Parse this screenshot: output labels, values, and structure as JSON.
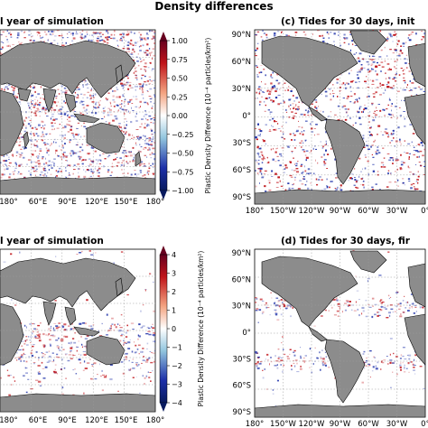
{
  "figure": {
    "title": "Density differences"
  },
  "panels": [
    {
      "title": "l year of simulation",
      "x_ticks": [
        "180°",
        "60°E",
        "90°E",
        "120°E",
        "150°E",
        "180°"
      ],
      "y_ticks": []
    },
    {
      "title": "(c) Tides for 30 days, init",
      "x_ticks": [
        "180°",
        "150°W",
        "120°W",
        "90°W",
        "60°W",
        "30°W",
        "0°"
      ],
      "y_ticks": [
        "90°N",
        "60°N",
        "30°N",
        "0°",
        "30°S",
        "60°S",
        "90°S"
      ]
    },
    {
      "title": "l year of simulation",
      "x_ticks": [
        "180°",
        "60°E",
        "90°E",
        "120°E",
        "150°E",
        "180°"
      ],
      "y_ticks": []
    },
    {
      "title": "(d) Tides for 30 days, fir",
      "x_ticks": [
        "180°",
        "150°W",
        "120°W",
        "90°W",
        "60°W",
        "30°W",
        "0°"
      ],
      "y_ticks": [
        "90°N",
        "60°N",
        "30°N",
        "0°",
        "30°S",
        "60°S",
        "90°S"
      ]
    }
  ],
  "colorbars": [
    {
      "label": "Plastic Density Difference (10⁻⁴ particles/km²)",
      "ticks": [
        "1.00",
        "0.75",
        "0.50",
        "0.25",
        "0.00",
        "−0.25",
        "−0.50",
        "−0.75",
        "−1.00"
      ],
      "min": -1.0,
      "max": 1.0
    },
    {
      "label": "Plastic Density Difference (10⁻⁴ particles/km²)",
      "ticks": [
        "4",
        "3",
        "2",
        "1",
        "0",
        "−1",
        "−2",
        "−3",
        "−4"
      ],
      "min": -4,
      "max": 4
    }
  ],
  "colors": {
    "land": "#8c8c8c",
    "positive": "#c0141a",
    "negative": "#1c2fa8",
    "ocean": "#ffffff"
  }
}
